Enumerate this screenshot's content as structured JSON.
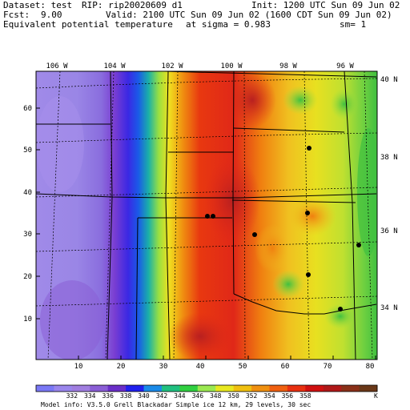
{
  "header": {
    "dataset": "Dataset: test",
    "rip": "RIP: rip20020609 d1",
    "init": "Init: 1200 UTC Sun 09 Jun 02",
    "fcst_label": "Fcst:",
    "fcst_value": "9.00",
    "valid": "Valid: 2100 UTC Sun 09 Jun 02 (1600 CDT Sun 09 Jun 02)",
    "field": "Equivalent potential temperature",
    "sigma": "at sigma = 0.983",
    "sm": "sm= 1"
  },
  "map": {
    "top_lon_labels": [
      "106 W",
      "104 W",
      "102 W",
      "100 W",
      "98 W",
      "96 W"
    ],
    "right_lat_labels": [
      "40 N",
      "38 N",
      "36 N",
      "34 N"
    ],
    "x_axis_ticks": [
      "10",
      "20",
      "30",
      "40",
      "50",
      "60",
      "70",
      "80"
    ],
    "y_axis_ticks": [
      "10",
      "20",
      "30",
      "40",
      "50",
      "60"
    ],
    "cities": [
      "city-1",
      "city-2",
      "city-3",
      "city-4",
      "city-5",
      "city-6",
      "city-7",
      "city-8"
    ]
  },
  "legend": {
    "values": [
      "332",
      "334",
      "336",
      "338",
      "340",
      "342",
      "344",
      "346",
      "348",
      "350",
      "352",
      "354",
      "356",
      "358"
    ],
    "unit": "K",
    "colors": [
      "#7a78f5",
      "#9a86ec",
      "#a07ee0",
      "#8a5ed6",
      "#6a2ec8",
      "#2020ee",
      "#1a8ae8",
      "#20c080",
      "#30d040",
      "#9ae850",
      "#e8e820",
      "#f0c010",
      "#f09010",
      "#f06010",
      "#e83010",
      "#d01010",
      "#b01818",
      "#8a3018",
      "#6a3818"
    ]
  },
  "footer": {
    "model_info": "Model info: V3.5.0   Grell    Blackadar  Simple ice    12 km,  29 levels,   30 sec"
  }
}
